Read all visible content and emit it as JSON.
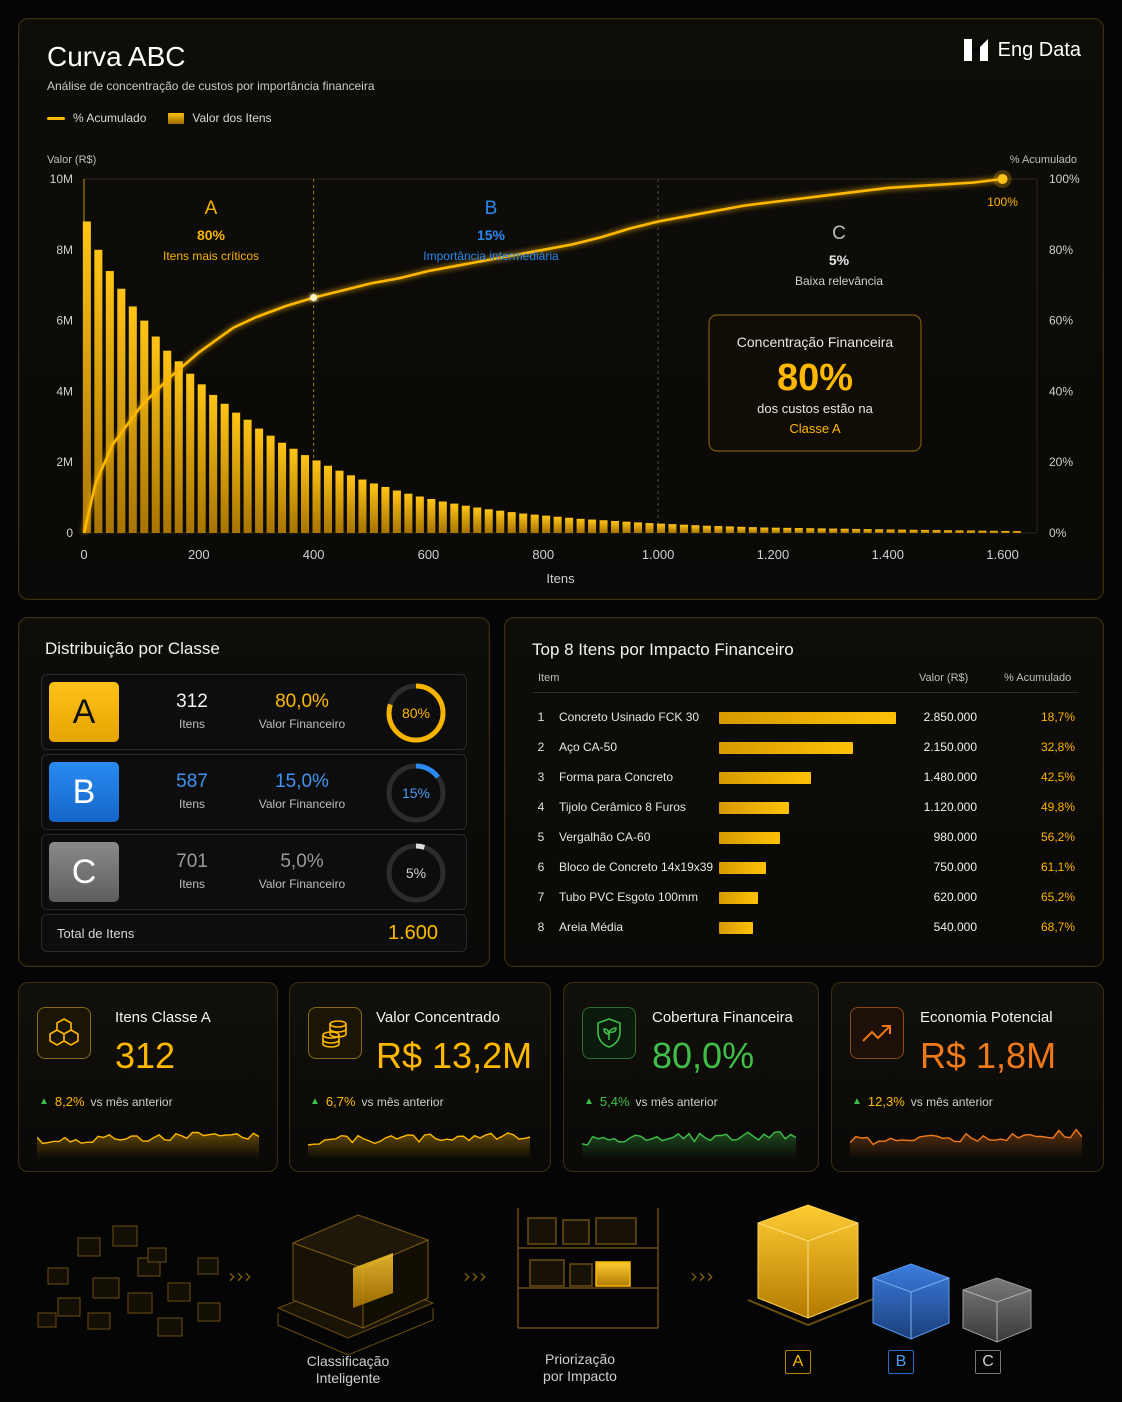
{
  "header": {
    "title": "Curva ABC",
    "subtitle": "Análise de concentração de custos por importância financeira",
    "brand": "Eng Data",
    "legend": [
      {
        "label": "% Acumulado",
        "kind": "line"
      },
      {
        "label": "Valor dos Itens",
        "kind": "bar"
      }
    ]
  },
  "colors": {
    "accent": "#ffb800",
    "classA": "#f5b400",
    "classB": "#1f7be0",
    "classC": "#777777",
    "green": "#3fbf4a",
    "orange": "#f07a1a"
  },
  "chart_data": {
    "type": "bar",
    "title": "Curva ABC",
    "xlabel": "Itens",
    "ylabel": "Valor (R$)",
    "y2label": "% Acumulado",
    "xlim": [
      0,
      1660
    ],
    "ylim": [
      0,
      10000000
    ],
    "y2lim": [
      0,
      100
    ],
    "x_ticks": [
      "0",
      "200",
      "400",
      "600",
      "800",
      "1.000",
      "1.200",
      "1.400",
      "1.600"
    ],
    "y_ticks": [
      "0",
      "2M",
      "4M",
      "6M",
      "8M",
      "10M"
    ],
    "y2_ticks": [
      "0%",
      "20%",
      "40%",
      "60%",
      "80%",
      "100%"
    ],
    "series": [
      {
        "name": "Valor dos Itens",
        "type": "bar",
        "x": [
          5,
          25,
          45,
          65,
          85,
          105,
          125,
          145,
          165,
          185,
          205,
          225,
          245,
          265,
          285,
          305,
          325,
          345,
          365,
          385,
          405,
          425,
          445,
          465,
          485,
          505,
          525,
          545,
          565,
          585,
          605,
          625,
          645,
          665,
          685,
          705,
          725,
          745,
          765,
          785,
          805,
          825,
          845,
          865,
          885,
          905,
          925,
          945,
          965,
          985,
          1005,
          1025,
          1045,
          1065,
          1085,
          1105,
          1125,
          1145,
          1165,
          1185,
          1205,
          1225,
          1245,
          1265,
          1285,
          1305,
          1325,
          1345,
          1365,
          1385,
          1405,
          1425,
          1445,
          1465,
          1485,
          1505,
          1525,
          1545,
          1565,
          1585,
          1605,
          1625
        ],
        "values": [
          8800000,
          8000000,
          7400000,
          6900000,
          6400000,
          6000000,
          5550000,
          5150000,
          4850000,
          4500000,
          4200000,
          3900000,
          3650000,
          3400000,
          3200000,
          2950000,
          2750000,
          2550000,
          2380000,
          2200000,
          2050000,
          1900000,
          1760000,
          1630000,
          1510000,
          1400000,
          1300000,
          1200000,
          1110000,
          1030000,
          960000,
          890000,
          830000,
          770000,
          720000,
          670000,
          630000,
          590000,
          550000,
          520000,
          490000,
          460000,
          430000,
          400000,
          380000,
          360000,
          340000,
          320000,
          300000,
          280000,
          265000,
          250000,
          235000,
          220000,
          205000,
          195000,
          185000,
          175000,
          165000,
          155000,
          150000,
          145000,
          140000,
          135000,
          130000,
          125000,
          120000,
          115000,
          110000,
          105000,
          100000,
          95000,
          90000,
          86000,
          82000,
          78000,
          74000,
          70000,
          66000,
          62000,
          58000,
          55000
        ]
      },
      {
        "name": "% Acumulado",
        "type": "line",
        "x": [
          0,
          20,
          50,
          100,
          150,
          200,
          260,
          300,
          350,
          400,
          450,
          500,
          550,
          600,
          650,
          700,
          750,
          800,
          850,
          900,
          950,
          1000,
          1050,
          1100,
          1150,
          1200,
          1250,
          1300,
          1350,
          1400,
          1450,
          1500,
          1550,
          1600
        ],
        "values": [
          0,
          14,
          25,
          36,
          44,
          51,
          58,
          61,
          64,
          66.5,
          68.5,
          70.5,
          72,
          74,
          75.5,
          77,
          78.5,
          80,
          81.5,
          83.5,
          86,
          88,
          89.5,
          91,
          92.5,
          93.5,
          94.5,
          95.5,
          96.5,
          97.5,
          98,
          98.5,
          99,
          100
        ]
      }
    ],
    "annotations": {
      "zones": [
        {
          "class": "A",
          "pct": "80%",
          "desc": "Itens mais críticos",
          "end_x": 400
        },
        {
          "class": "B",
          "pct": "15%",
          "desc": "Importância intermediária",
          "end_x": 1000
        },
        {
          "class": "C",
          "pct": "5%",
          "desc": "Baixa relevância"
        }
      ],
      "end_label": "100%",
      "callout": {
        "title": "Concentração Financeira",
        "value": "80%",
        "line1": "dos custos estão na",
        "line2": "Classe A"
      }
    },
    "grid": false,
    "legend_position": "top-left"
  },
  "distribution": {
    "title": "Distribuição por Classe",
    "items_label": "Itens",
    "value_label": "Valor Financeiro",
    "classes": [
      {
        "letter": "A",
        "count": "312",
        "pct": "80,0%",
        "ring": "80%",
        "fraction": 0.8
      },
      {
        "letter": "B",
        "count": "587",
        "pct": "15,0%",
        "ring": "15%",
        "fraction": 0.15
      },
      {
        "letter": "C",
        "count": "701",
        "pct": "5,0%",
        "ring": "5%",
        "fraction": 0.05
      }
    ],
    "total_label": "Total de Itens",
    "total_value": "1.600"
  },
  "top_items": {
    "title": "Top 8 Itens por Impacto Financeiro",
    "headers": {
      "item": "Item",
      "value": "Valor (R$)",
      "acc": "% Acumulado"
    },
    "max_value": 2850000,
    "rows": [
      {
        "n": "1",
        "name": "Concreto Usinado FCK 30",
        "value": "2.850.000",
        "raw": 2850000,
        "acc": "18,7%"
      },
      {
        "n": "2",
        "name": "Aço CA-50",
        "value": "2.150.000",
        "raw": 2150000,
        "acc": "32,8%"
      },
      {
        "n": "3",
        "name": "Forma para Concreto",
        "value": "1.480.000",
        "raw": 1480000,
        "acc": "42,5%"
      },
      {
        "n": "4",
        "name": "Tijolo Cerâmico 8 Furos",
        "value": "1.120.000",
        "raw": 1120000,
        "acc": "49,8%"
      },
      {
        "n": "5",
        "name": "Vergalhão CA-60",
        "value": "980.000",
        "raw": 980000,
        "acc": "56,2%"
      },
      {
        "n": "6",
        "name": "Bloco de Concreto 14x19x39",
        "value": "750.000",
        "raw": 750000,
        "acc": "61,1%"
      },
      {
        "n": "7",
        "name": "Tubo PVC Esgoto 100mm",
        "value": "620.000",
        "raw": 620000,
        "acc": "65,2%"
      },
      {
        "n": "8",
        "name": "Areia Média",
        "value": "540.000",
        "raw": 540000,
        "acc": "68,7%"
      }
    ]
  },
  "kpis": [
    {
      "label": "Itens Classe A",
      "value": "312",
      "trend": "8,2%",
      "vs": "vs mês anterior",
      "icon": "boxes-icon",
      "color": "#ffb800"
    },
    {
      "label": "Valor Concentrado",
      "value": "R$ 13,2M",
      "trend": "6,7%",
      "vs": "vs mês anterior",
      "icon": "coins-icon",
      "color": "#ffb800"
    },
    {
      "label": "Cobertura Financeira",
      "value": "80,0%",
      "trend": "5,4%",
      "vs": "vs mês anterior",
      "icon": "shield-icon",
      "color": "#3fbf4a"
    },
    {
      "label": "Economia Potencial",
      "value": "R$ 1,8M",
      "trend": "12,3%",
      "vs": "vs mês anterior",
      "icon": "trend-up-icon",
      "color": "#f07a1a"
    }
  ],
  "process": {
    "step2": [
      "Classificação",
      "Inteligente"
    ],
    "step3": [
      "Priorização",
      "por Impacto"
    ],
    "classes": [
      "A",
      "B",
      "C"
    ]
  }
}
